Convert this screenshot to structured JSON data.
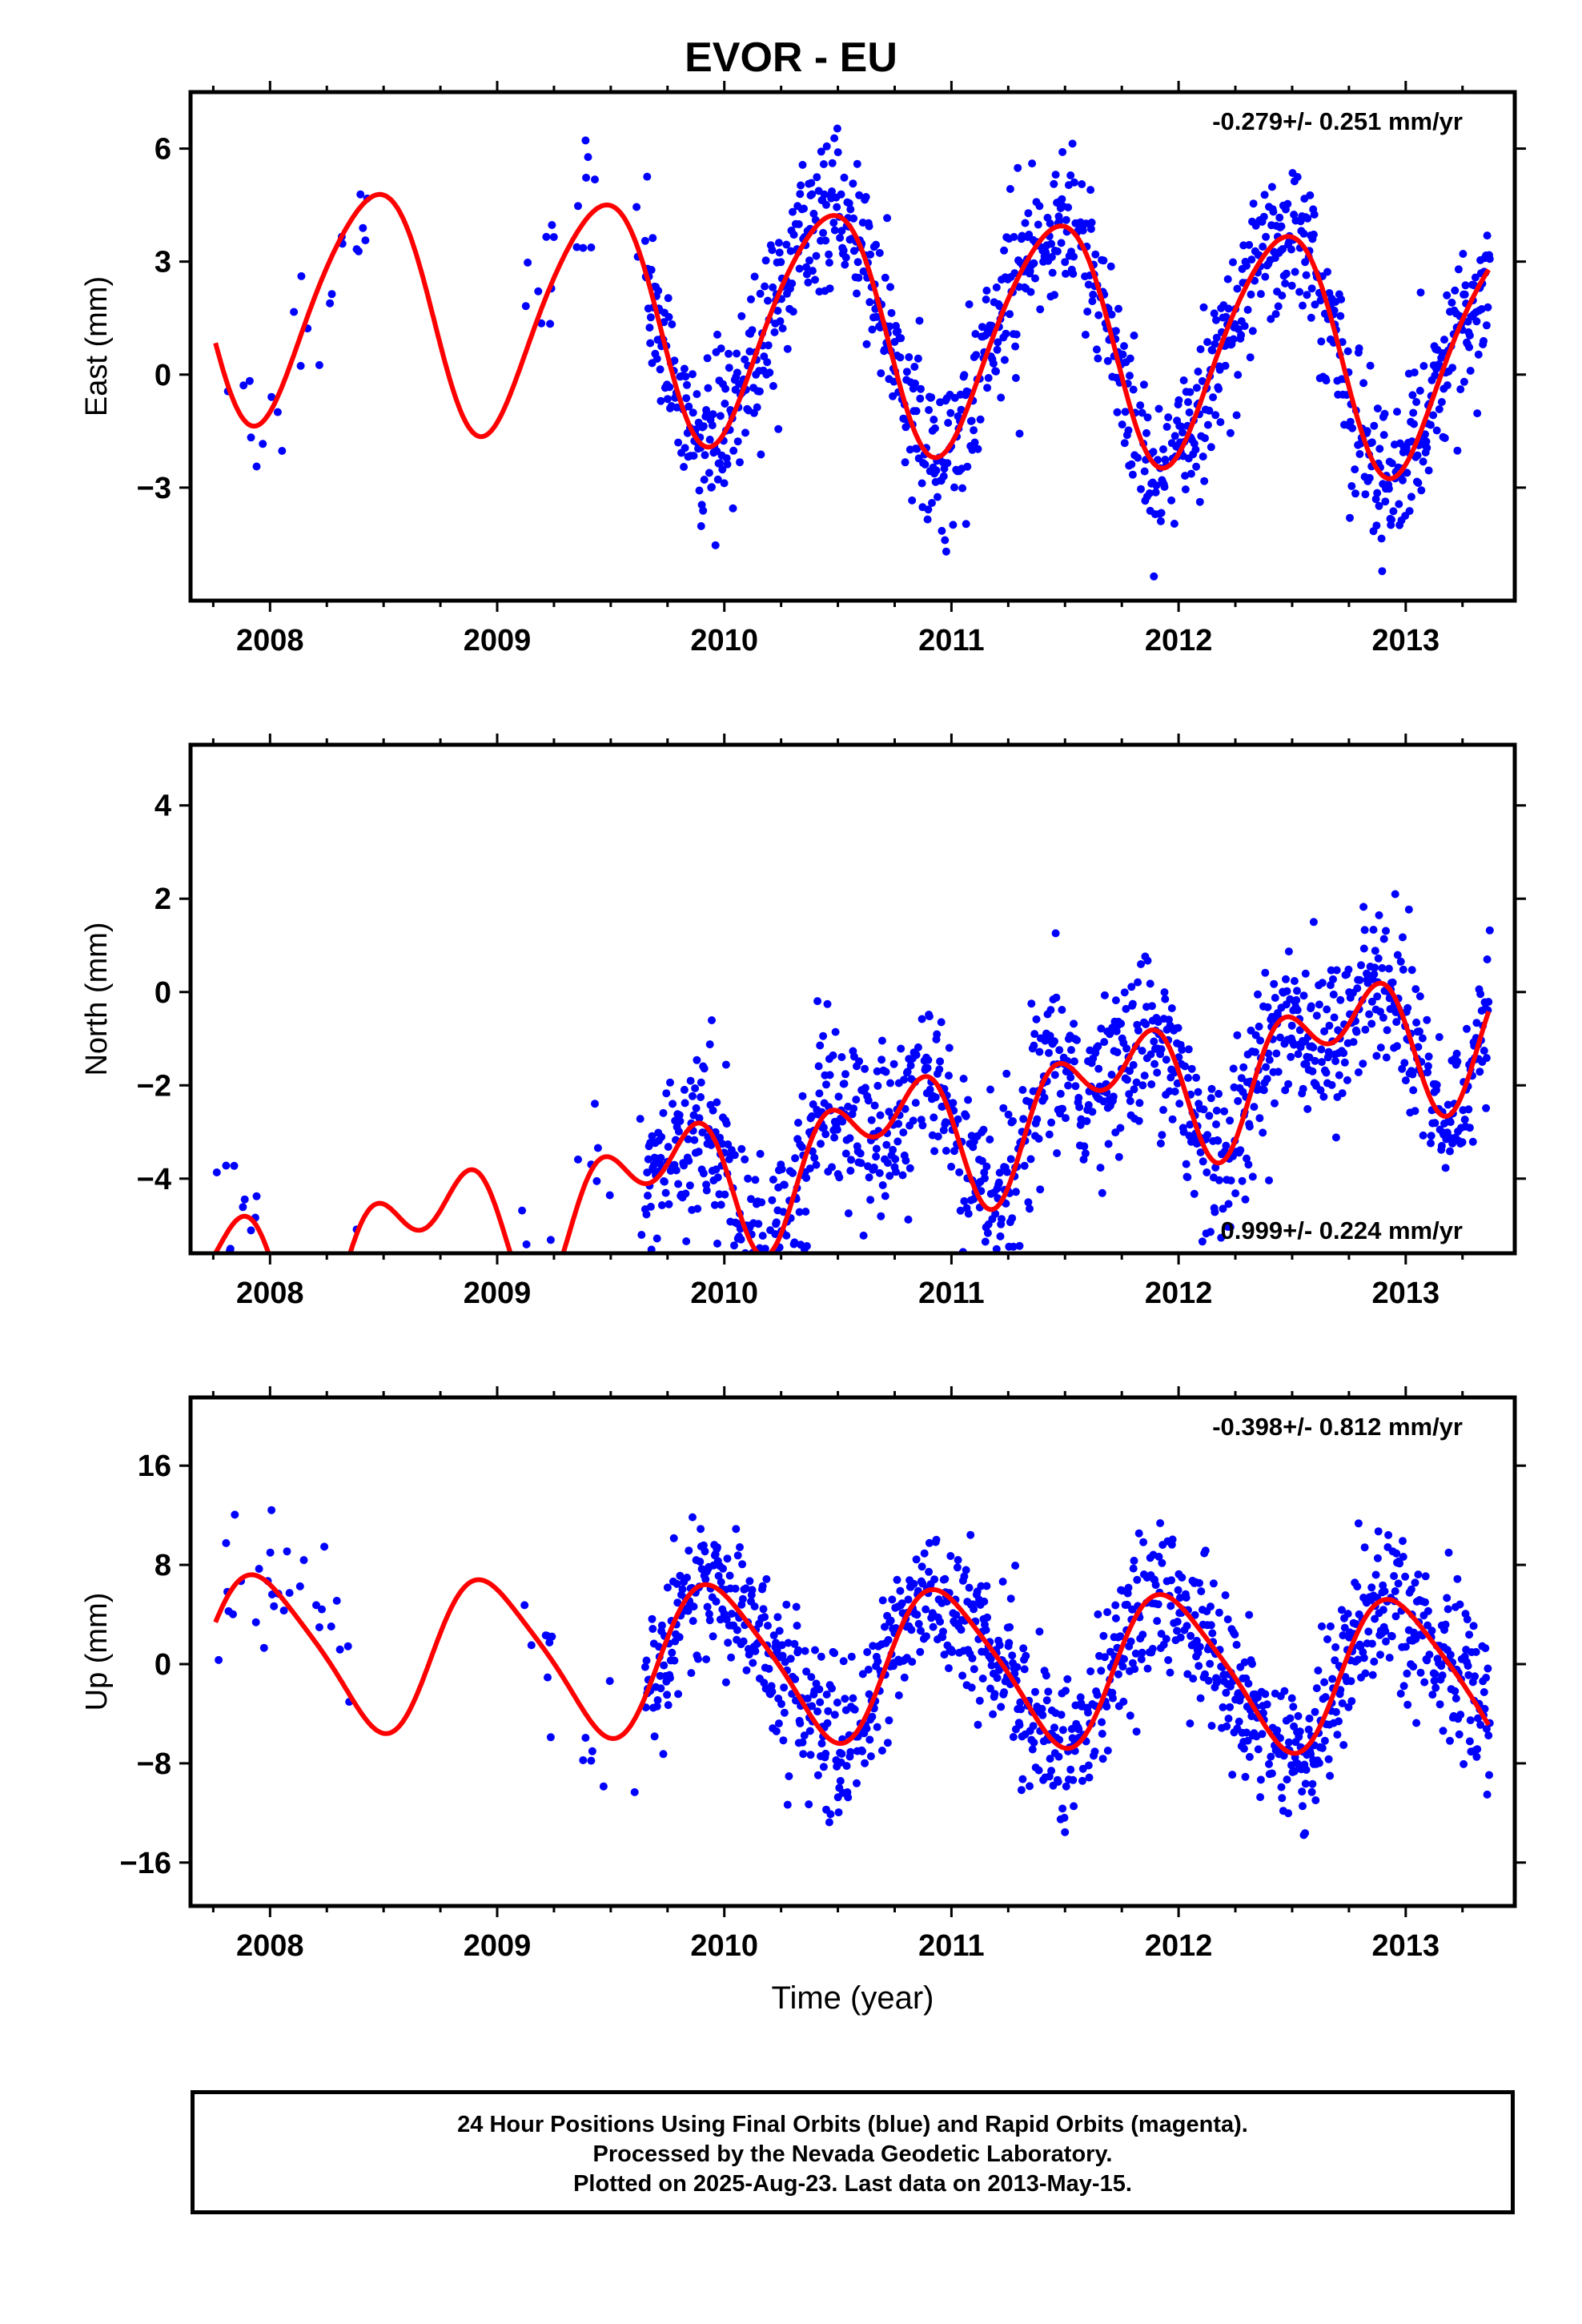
{
  "title": "EVOR - EU",
  "footer": {
    "line1": "24 Hour Positions Using Final Orbits (blue) and Rapid Orbits (magenta).",
    "line2": "Processed by the Nevada Geodetic Laboratory.",
    "line3": "Plotted on 2025-Aug-23. Last data on 2013-May-15."
  },
  "colors": {
    "points": "#0000ff",
    "model": "#ff0000",
    "axes": "#000000"
  },
  "chart_data": [
    {
      "type": "scatter",
      "name": "east",
      "ylabel": "East (mm)",
      "xlabel": "",
      "xlim": [
        2007.65,
        2013.48
      ],
      "ylim": [
        -6.0,
        7.5
      ],
      "xticks": [
        2008,
        2009,
        2010,
        2011,
        2012,
        2013
      ],
      "yticks": [
        -3,
        0,
        3,
        6
      ],
      "rate_label": "-0.279+/- 0.251 mm/yr",
      "rate_position": "top-right",
      "model": {
        "trend": -0.279,
        "offset": 1.4,
        "a1": 3.1,
        "phase1": 0.2,
        "a2": 0.35,
        "phase2": 1.0
      },
      "scatter_sd": 1.05,
      "data_gaps": [
        [
          2008.45,
          2009.1
        ],
        [
          2009.25,
          2009.35
        ],
        [
          2009.5,
          2009.6
        ]
      ],
      "sparse_until": 2009.65
    },
    {
      "type": "scatter",
      "name": "north",
      "ylabel": "North (mm)",
      "xlabel": "",
      "xlim": [
        2007.65,
        2013.48
      ],
      "ylim": [
        -5.6,
        5.3
      ],
      "xticks": [
        2008,
        2009,
        2010,
        2011,
        2012,
        2013
      ],
      "yticks": [
        -4,
        -2,
        0,
        2,
        4
      ],
      "rate_label": "0.999+/- 0.224 mm/yr",
      "rate_position": "bottom-right",
      "model": {
        "trend": 0.999,
        "offset": -3.9,
        "a1": 1.05,
        "phase1": 0.45,
        "a2": 0.9,
        "phase2": 0.3
      },
      "scatter_sd": 0.9,
      "data_gaps": [
        [
          2008.4,
          2009.1
        ],
        [
          2009.25,
          2009.35
        ],
        [
          2009.5,
          2009.6
        ]
      ],
      "sparse_until": 2009.65
    },
    {
      "type": "scatter",
      "name": "up",
      "ylabel": "Up (mm)",
      "xlabel": "Time (year)",
      "xlim": [
        2007.65,
        2013.48
      ],
      "ylim": [
        -19.5,
        21.5
      ],
      "xticks": [
        2008,
        2009,
        2010,
        2011,
        2012,
        2013
      ],
      "yticks": [
        -16,
        -8,
        0,
        8,
        16
      ],
      "rate_label": "-0.398+/- 0.812 mm/yr",
      "rate_position": "top-right",
      "model": {
        "trend": -0.398,
        "offset": 0.3,
        "a1": 6.0,
        "phase1": 0.72,
        "a2": 1.0,
        "phase2": 0.2
      },
      "scatter_sd": 3.0,
      "data_gaps": [
        [
          2008.35,
          2009.1
        ],
        [
          2009.25,
          2009.35
        ],
        [
          2009.5,
          2009.6
        ]
      ],
      "sparse_until": 2009.65
    }
  ]
}
